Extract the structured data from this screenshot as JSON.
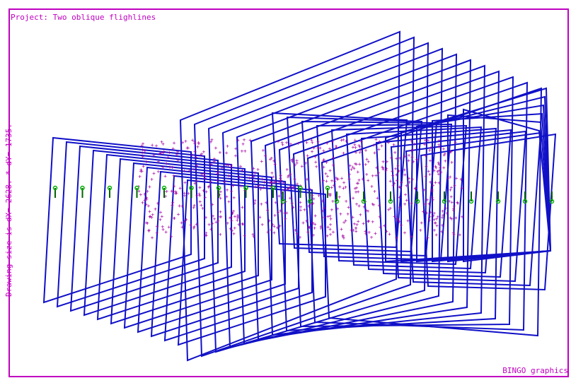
{
  "title": "Project: Two oblique flighlines",
  "side_label": "Drawing size is dX= 2628. * dY= 1735.",
  "footer_label": "BINGO graphics",
  "colors": {
    "border": "#c000c0",
    "text": "#c000c0",
    "frame": "#1010c8",
    "point": "#a000a0",
    "camera": "#006400",
    "camera_head": "#00b000"
  },
  "flightlines": 2,
  "images_per_line": 11,
  "tie_point_count": 650
}
